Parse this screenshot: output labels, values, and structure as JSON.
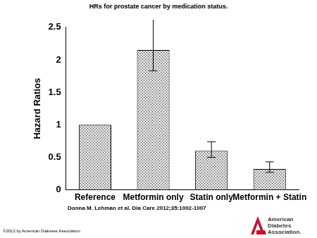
{
  "chart_data": {
    "type": "bar",
    "title": "HRs for prostate cancer by medication status.",
    "y_label": "Hazard Ratios",
    "categories": [
      "Reference",
      "Metformin only",
      "Statin only",
      "Metformin + Statin"
    ],
    "values": [
      1,
      2.15,
      0.6,
      0.32
    ],
    "error_low": [
      null,
      1.83,
      0.5,
      0.27
    ],
    "error_high": [
      null,
      2.63,
      0.74,
      0.43
    ],
    "color": "#d9d9d9",
    "ylim": [
      0,
      2.5
    ],
    "yticks": [
      0,
      0.5,
      1,
      1.5,
      2,
      2.5
    ],
    "grid": false,
    "annotations": [
      "Donna M. Lehman et al. Dia Care 2012;35:1002-1007",
      "©2012 by American Diabetes Association",
      "American Diabetes Association."
    ]
  }
}
